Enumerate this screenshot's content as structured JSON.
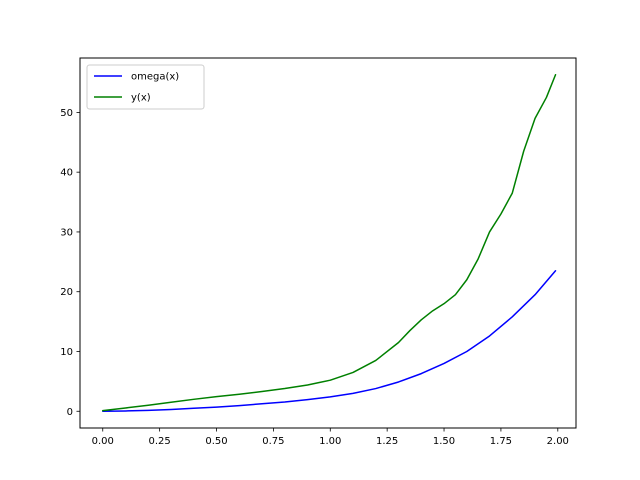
{
  "chart_data": {
    "type": "line",
    "title": "",
    "xlabel": "",
    "ylabel": "",
    "xlim": [
      -0.1,
      2.08
    ],
    "ylim": [
      -2.8,
      59.1
    ],
    "xticks": [
      0.0,
      0.25,
      0.5,
      0.75,
      1.0,
      1.25,
      1.5,
      1.75,
      2.0
    ],
    "xtick_labels": [
      "0.00",
      "0.25",
      "0.50",
      "0.75",
      "1.00",
      "1.25",
      "1.50",
      "1.75",
      "2.00"
    ],
    "yticks": [
      0,
      10,
      20,
      30,
      40,
      50
    ],
    "ytick_labels": [
      "0",
      "10",
      "20",
      "30",
      "40",
      "50"
    ],
    "grid": false,
    "legend_position": "upper-left",
    "series": [
      {
        "name": "omega(x)",
        "color": "#0000ff",
        "x": [
          0.0,
          0.1,
          0.2,
          0.3,
          0.4,
          0.5,
          0.6,
          0.7,
          0.8,
          0.9,
          1.0,
          1.1,
          1.2,
          1.3,
          1.4,
          1.5,
          1.6,
          1.7,
          1.8,
          1.9,
          1.99
        ],
        "y": [
          0.0,
          0.05,
          0.15,
          0.3,
          0.5,
          0.7,
          0.95,
          1.25,
          1.55,
          1.95,
          2.4,
          3.0,
          3.8,
          4.9,
          6.3,
          8.0,
          10.0,
          12.6,
          15.8,
          19.5,
          23.5
        ]
      },
      {
        "name": "y(x)",
        "color": "#008000",
        "x": [
          0.0,
          0.1,
          0.2,
          0.3,
          0.4,
          0.5,
          0.6,
          0.7,
          0.8,
          0.9,
          1.0,
          1.1,
          1.2,
          1.3,
          1.35,
          1.4,
          1.45,
          1.5,
          1.55,
          1.6,
          1.65,
          1.7,
          1.75,
          1.8,
          1.85,
          1.9,
          1.95,
          1.99
        ],
        "y": [
          0.1,
          0.55,
          1.0,
          1.5,
          2.0,
          2.45,
          2.85,
          3.3,
          3.8,
          4.4,
          5.2,
          6.5,
          8.5,
          11.5,
          13.5,
          15.3,
          16.8,
          18.0,
          19.5,
          22.0,
          25.5,
          30.0,
          33.0,
          36.5,
          43.5,
          49.0,
          52.5,
          56.3
        ]
      }
    ]
  }
}
